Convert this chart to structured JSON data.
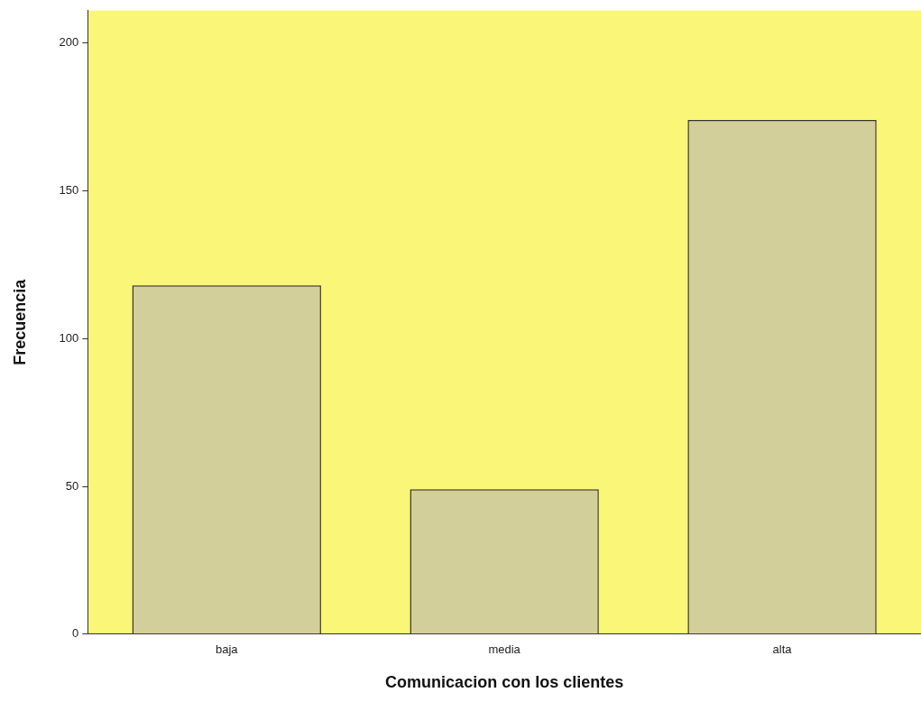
{
  "chart_data": {
    "type": "bar",
    "xlabel": "Comunicacion con los clientes",
    "ylabel": "Frecuencia",
    "categories": [
      "baja",
      "media",
      "alta"
    ],
    "values": [
      118,
      49,
      174
    ],
    "color": "#d3cf9b",
    "ylim": [
      0,
      211
    ],
    "yticks": [
      0,
      50,
      100,
      150,
      200
    ],
    "grid": false,
    "legend": false
  }
}
